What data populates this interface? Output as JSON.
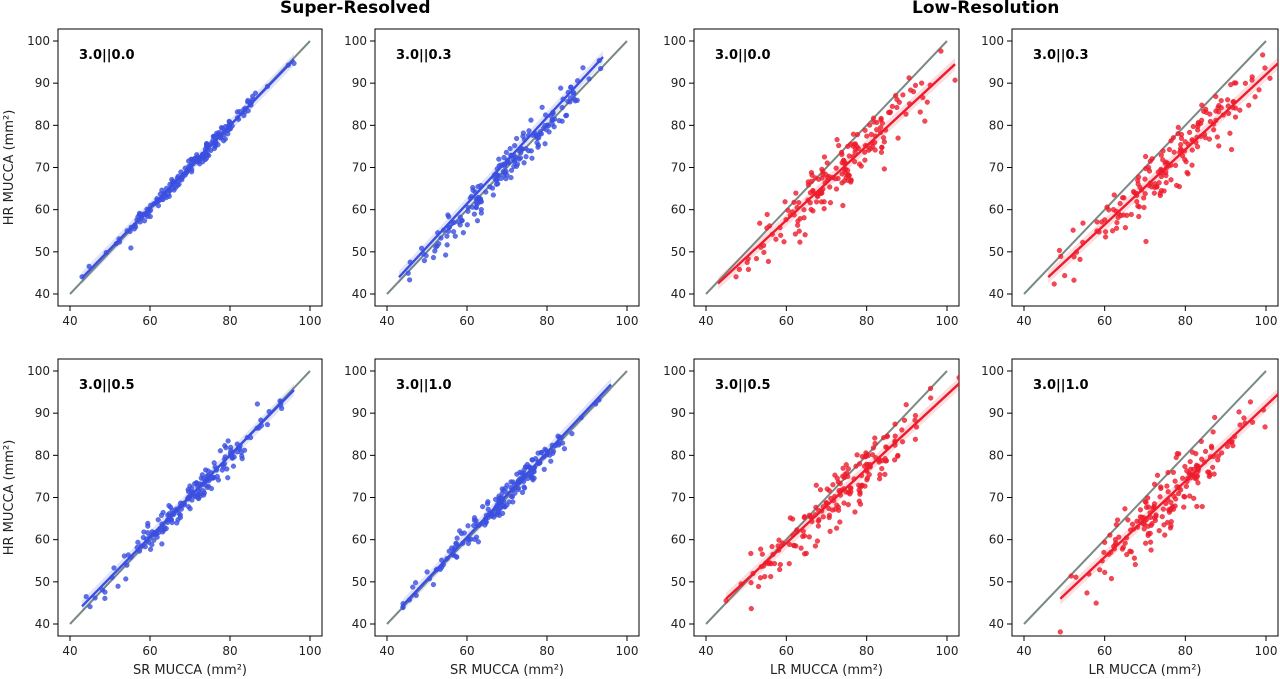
{
  "groups": [
    {
      "title": "Super-Resolved"
    },
    {
      "title": "Low-Resolution"
    }
  ],
  "colors": {
    "sr": "#3a4fe0",
    "lr": "#ee1c2c",
    "identity": "#7a8a84"
  },
  "chart_data": [
    {
      "type": "scatter",
      "group": "Super-Resolved",
      "label": "3.0||0.0",
      "xlabel": "",
      "ylabel": "HR MUCCA (mm²)",
      "xlim": [
        40,
        100
      ],
      "ylim": [
        40,
        100
      ],
      "xticks": [
        40,
        60,
        80,
        100
      ],
      "yticks": [
        40,
        50,
        60,
        70,
        80,
        90,
        100
      ],
      "identity_line": true,
      "fit": {
        "x": [
          43,
          96
        ],
        "y": [
          43.8,
          95.6
        ]
      },
      "center": [
        71,
        71
      ],
      "slope": 0.98,
      "spread": 1.1,
      "xrange": [
        43,
        96
      ],
      "n": 180,
      "color": "sr"
    },
    {
      "type": "scatter",
      "group": "Super-Resolved",
      "label": "3.0||0.3",
      "xlabel": "",
      "ylabel": "",
      "xlim": [
        40,
        100
      ],
      "ylim": [
        40,
        100
      ],
      "xticks": [
        40,
        60,
        80,
        100
      ],
      "yticks": [
        40,
        50,
        60,
        70,
        80,
        90,
        100
      ],
      "identity_line": true,
      "fit": {
        "x": [
          43,
          94
        ],
        "y": [
          44.0,
          96.2
        ]
      },
      "center": [
        70,
        70
      ],
      "slope": 1.02,
      "spread": 2.2,
      "xrange": [
        43,
        94
      ],
      "n": 180,
      "color": "sr"
    },
    {
      "type": "scatter",
      "group": "Low-Resolution",
      "label": "3.0||0.0",
      "xlabel": "",
      "ylabel": "",
      "xlim": [
        40,
        100
      ],
      "ylim": [
        40,
        100
      ],
      "xticks": [
        40,
        60,
        80,
        100
      ],
      "yticks": [
        40,
        50,
        60,
        70,
        80,
        90,
        100
      ],
      "identity_line": true,
      "fit": {
        "x": [
          43,
          102
        ],
        "y": [
          42.5,
          94.5
        ]
      },
      "center": [
        74,
        69.7
      ],
      "slope": 0.88,
      "spread": 3.2,
      "xrange": [
        43,
        102
      ],
      "n": 180,
      "color": "lr"
    },
    {
      "type": "scatter",
      "group": "Low-Resolution",
      "label": "3.0||0.3",
      "xlabel": "",
      "ylabel": "",
      "xlim": [
        40,
        100
      ],
      "ylim": [
        40,
        100
      ],
      "xticks": [
        40,
        60,
        80,
        100
      ],
      "yticks": [
        40,
        50,
        60,
        70,
        80,
        90,
        100
      ],
      "identity_line": true,
      "fit": {
        "x": [
          46,
          105
        ],
        "y": [
          44.0,
          96.5
        ]
      },
      "center": [
        76,
        70.7
      ],
      "slope": 0.89,
      "spread": 3.4,
      "xrange": [
        46,
        105
      ],
      "n": 180,
      "color": "lr"
    },
    {
      "type": "scatter",
      "group": "Super-Resolved",
      "label": "3.0||0.5",
      "xlabel": "SR MUCCA (mm²)",
      "ylabel": "HR MUCCA (mm²)",
      "xlim": [
        40,
        100
      ],
      "ylim": [
        40,
        100
      ],
      "xticks": [
        40,
        60,
        80,
        100
      ],
      "yticks": [
        40,
        50,
        60,
        70,
        80,
        90,
        100
      ],
      "identity_line": true,
      "fit": {
        "x": [
          43,
          96
        ],
        "y": [
          44.2,
          95.5
        ]
      },
      "center": [
        70,
        70
      ],
      "slope": 0.97,
      "spread": 1.7,
      "xrange": [
        43,
        96
      ],
      "n": 180,
      "color": "sr"
    },
    {
      "type": "scatter",
      "group": "Super-Resolved",
      "label": "3.0||1.0",
      "xlabel": "SR MUCCA (mm²)",
      "ylabel": "",
      "xlim": [
        40,
        100
      ],
      "ylim": [
        40,
        100
      ],
      "xticks": [
        40,
        60,
        80,
        100
      ],
      "yticks": [
        40,
        50,
        60,
        70,
        80,
        90,
        100
      ],
      "identity_line": true,
      "fit": {
        "x": [
          44,
          96
        ],
        "y": [
          44.5,
          96.8
        ]
      },
      "center": [
        70,
        70.4
      ],
      "slope": 1.0,
      "spread": 1.7,
      "xrange": [
        44,
        96
      ],
      "n": 180,
      "color": "sr"
    },
    {
      "type": "scatter",
      "group": "Low-Resolution",
      "label": "3.0||0.5",
      "xlabel": "LR MUCCA (mm²)",
      "ylabel": "",
      "xlim": [
        40,
        100
      ],
      "ylim": [
        40,
        100
      ],
      "xticks": [
        40,
        60,
        80,
        100
      ],
      "yticks": [
        40,
        50,
        60,
        70,
        80,
        90,
        100
      ],
      "identity_line": true,
      "fit": {
        "x": [
          45,
          103
        ],
        "y": [
          46.0,
          97.0
        ]
      },
      "center": [
        74,
        71.5
      ],
      "slope": 0.88,
      "spread": 3.3,
      "xrange": [
        45,
        103
      ],
      "n": 180,
      "color": "lr"
    },
    {
      "type": "scatter",
      "group": "Low-Resolution",
      "label": "3.0||1.0",
      "xlabel": "LR MUCCA (mm²)",
      "ylabel": "",
      "xlim": [
        40,
        100
      ],
      "ylim": [
        40,
        100
      ],
      "xticks": [
        40,
        60,
        80,
        100
      ],
      "yticks": [
        40,
        50,
        60,
        70,
        80,
        90,
        100
      ],
      "identity_line": true,
      "fit": {
        "x": [
          49,
          103
        ],
        "y": [
          46.0,
          94.5
        ]
      },
      "center": [
        76,
        69.8
      ],
      "slope": 0.9,
      "spread": 3.5,
      "xrange": [
        49,
        103
      ],
      "n": 180,
      "color": "lr"
    }
  ]
}
